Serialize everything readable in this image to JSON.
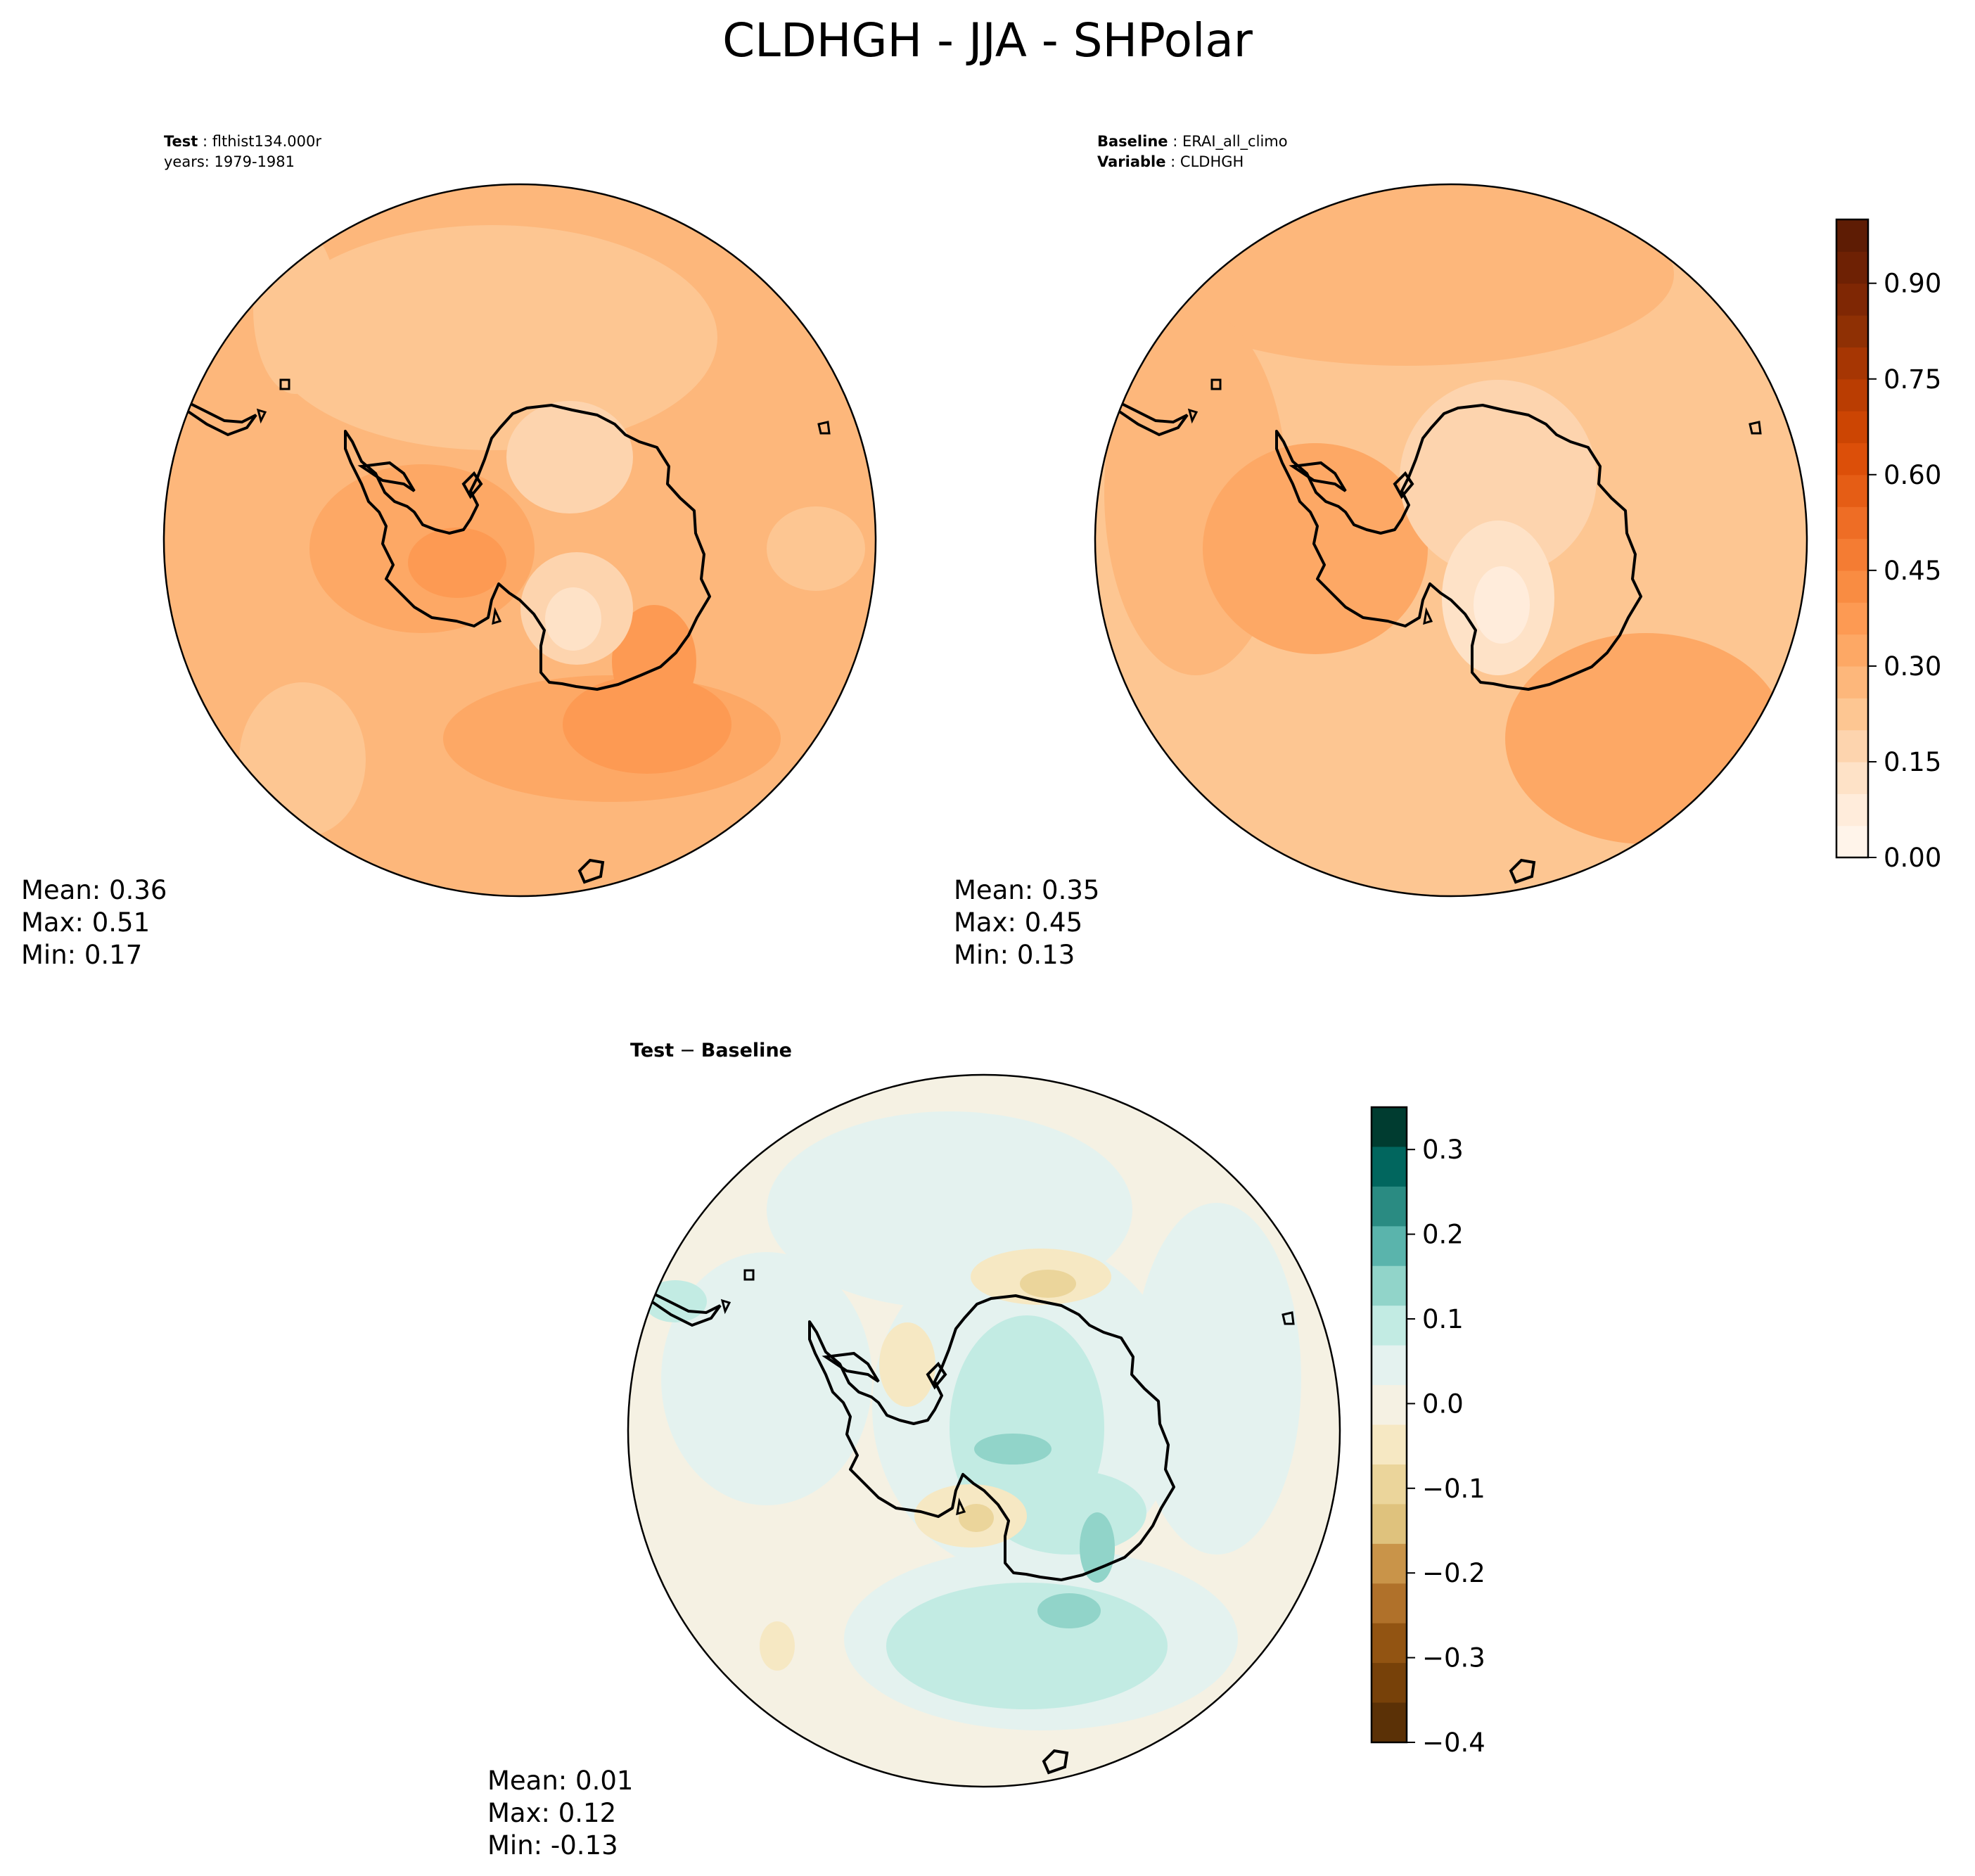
{
  "title": "CLDHGH - JJA - SHPolar",
  "panels": {
    "test": {
      "label_key": "Test",
      "label_value": "flthist134.000r",
      "years": "years: 1979-1981",
      "stats": {
        "mean": "Mean:  0.36",
        "max": "Max:  0.51",
        "min": "Min:  0.17"
      }
    },
    "baseline": {
      "label_key": "Baseline",
      "label_value": "ERAI_all_climo",
      "var_key": "Variable",
      "var_value": "CLDHGH",
      "stats": {
        "mean": "Mean:  0.35",
        "max": "Max:  0.45",
        "min": "Min:  0.13"
      }
    },
    "diff": {
      "title_left": "Test",
      "title_op": "−",
      "title_right": "Baseline",
      "stats": {
        "mean": "Mean:  0.01",
        "max": "Max:  0.12",
        "min": "Min: -0.13"
      }
    }
  },
  "chart_data": [
    {
      "type": "heatmap",
      "name": "Test",
      "projection": "south-polar-stereographic",
      "mean": 0.36,
      "max": 0.51,
      "min": 0.17,
      "colormap": "Oranges",
      "colorbar_range": [
        0.0,
        1.0
      ]
    },
    {
      "type": "heatmap",
      "name": "Baseline",
      "projection": "south-polar-stereographic",
      "mean": 0.35,
      "max": 0.45,
      "min": 0.13,
      "colormap": "Oranges",
      "colorbar_ticks": [
        "0.00",
        "0.15",
        "0.30",
        "0.45",
        "0.60",
        "0.75",
        "0.90"
      ],
      "colorbar_range": [
        0.0,
        1.0
      ],
      "colorbar_colors": [
        "#fff4ea",
        "#ffecdb",
        "#fee2c7",
        "#fdd4ae",
        "#fdc692",
        "#fdb77b",
        "#fda865",
        "#fd9a53",
        "#f98c42",
        "#f47c33",
        "#ee6d25",
        "#e55d15",
        "#dc4f09",
        "#cc4503",
        "#ba3d02",
        "#a63603",
        "#8f3004",
        "#7f2704",
        "#6e2104",
        "#5e1c04"
      ]
    },
    {
      "type": "heatmap",
      "name": "Test − Baseline",
      "projection": "south-polar-stereographic",
      "mean": 0.01,
      "max": 0.12,
      "min": -0.13,
      "colormap": "BrBG",
      "colorbar_ticks": [
        "0.3",
        "0.2",
        "0.1",
        "0.0",
        "−0.1",
        "−0.2",
        "−0.3",
        "−0.4"
      ],
      "colorbar_range": [
        -0.4,
        0.35
      ],
      "colorbar_colors": [
        "#003c30",
        "#01665e",
        "#2a8b82",
        "#5ab4ac",
        "#91d4c9",
        "#c2ebe3",
        "#e4f2ef",
        "#f5f1e3",
        "#f6e8c3",
        "#ebd59b",
        "#dfc27d",
        "#c99449",
        "#b0712a",
        "#925412",
        "#774109",
        "#5b3106"
      ]
    }
  ]
}
